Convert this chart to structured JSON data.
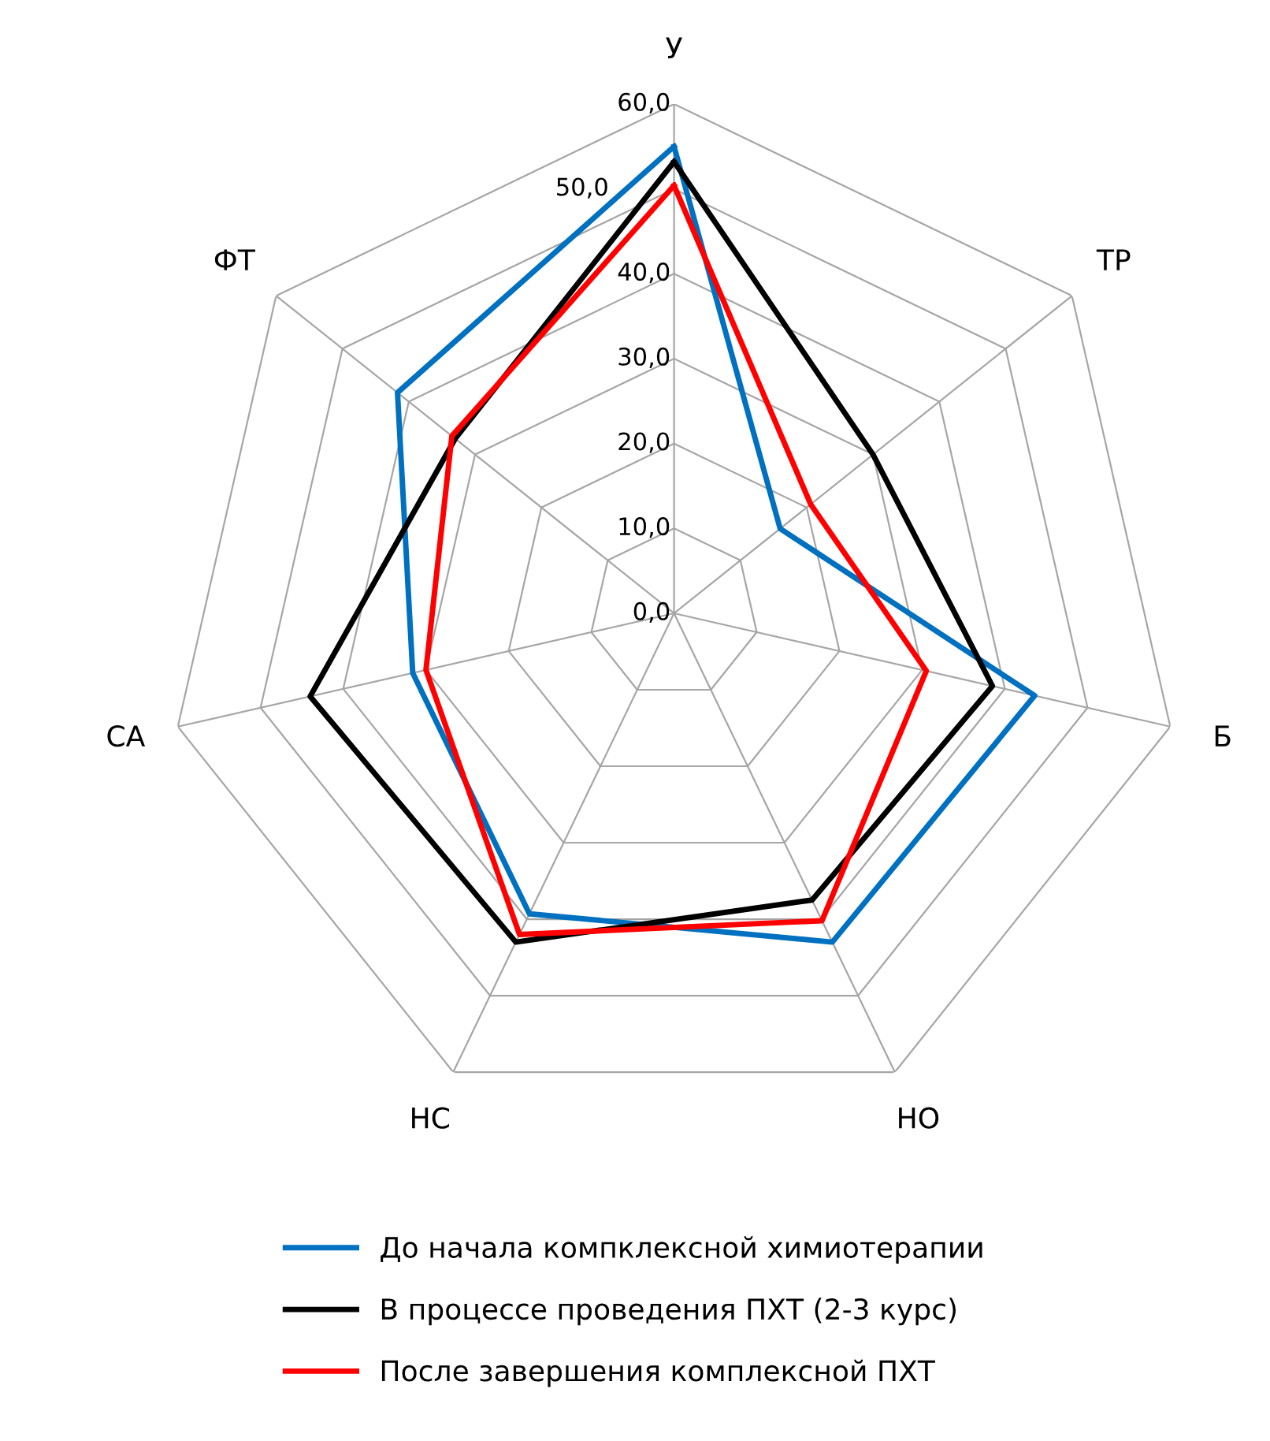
{
  "chart_data": {
    "type": "radar",
    "categories": [
      "У",
      "ТР",
      "Б",
      "НО",
      "НС",
      "СА",
      "ФТ"
    ],
    "series": [
      {
        "name": "До начала компклексной химиотерапии",
        "color": "#0070c0",
        "values": [
          55,
          16,
          43.6,
          43,
          39.3,
          31.6,
          41.7
        ]
      },
      {
        "name": "В процессе проведения ПХТ (2-3 курс)",
        "color": "#000000",
        "values": [
          53.2,
          30,
          38.5,
          37.5,
          43,
          44,
          33
        ]
      },
      {
        "name": "После завершения комплексной ПХТ",
        "color": "#ff0000",
        "values": [
          50.4,
          20.6,
          30.5,
          40.2,
          42,
          30,
          33.5
        ]
      }
    ],
    "ylim": [
      0,
      60
    ],
    "yticks": [
      {
        "value": 0,
        "label": "0,0"
      },
      {
        "value": 10,
        "label": "10,0"
      },
      {
        "value": 20,
        "label": "20,0"
      },
      {
        "value": 30,
        "label": "30,0"
      },
      {
        "value": 40,
        "label": "40,0"
      },
      {
        "value": 50,
        "label": "50,0"
      },
      {
        "value": 60,
        "label": "60,0"
      }
    ],
    "grid": true,
    "legend": "bottom",
    "marker": "none",
    "line_style": "solid"
  }
}
